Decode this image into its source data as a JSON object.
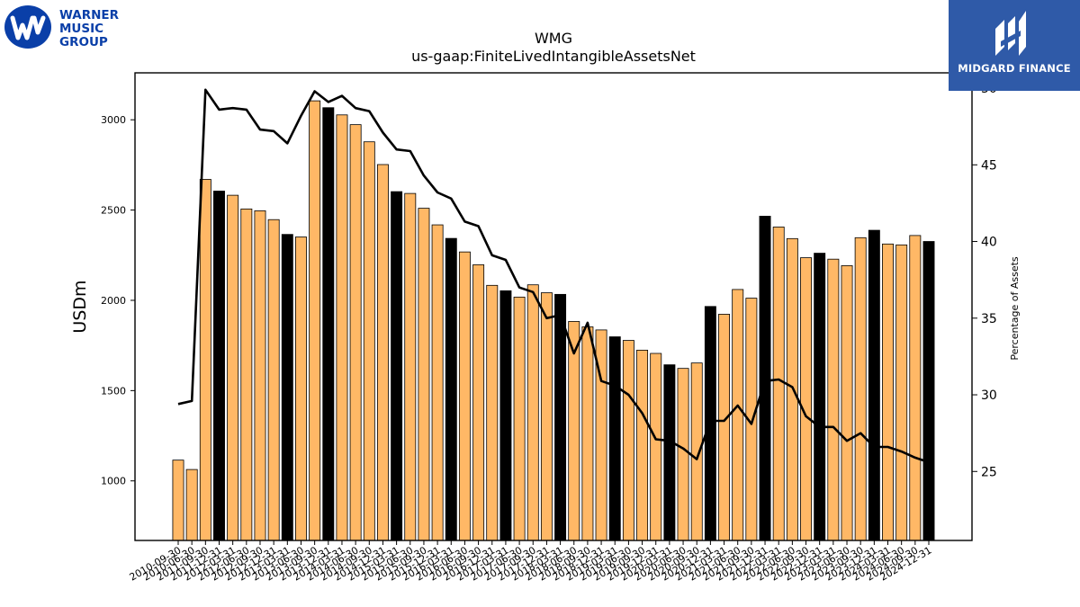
{
  "logos": {
    "wmg_lines": [
      "WARNER",
      "MUSIC",
      "GROUP"
    ],
    "midgard_text": "MIDGARD FINANCE"
  },
  "chart_data": {
    "type": "bar",
    "title": "WMG",
    "subtitle": "us-gaap:FiniteLivedIntangibleAssetsNet",
    "ylabel": "USDm",
    "y2label": "Percentage of Assets",
    "ylim": [
      670,
      3260
    ],
    "y2lim": [
      20.5,
      51.0
    ],
    "yticks": [
      1000,
      1500,
      2000,
      2500,
      3000
    ],
    "y2ticks": [
      25,
      30,
      35,
      40,
      45,
      50
    ],
    "colors": {
      "bar": "#ffb866",
      "bar_q4": "#000000",
      "line": "#000000"
    },
    "categories": [
      "2010-09-30",
      "2010-06-30",
      "2011-09-30",
      "2011-12-31",
      "2012-03-31",
      "2012-06-30",
      "2012-09-30",
      "2012-12-31",
      "2013-03-31",
      "2013-06-30",
      "2013-09-30",
      "2013-12-31",
      "2014-03-31",
      "2014-06-30",
      "2014-09-30",
      "2014-12-31",
      "2015-03-31",
      "2015-06-30",
      "2015-09-30",
      "2015-12-31",
      "2016-03-31",
      "2016-06-30",
      "2016-09-30",
      "2016-12-31",
      "2017-03-31",
      "2017-06-30",
      "2017-09-30",
      "2017-12-31",
      "2018-03-31",
      "2018-06-30",
      "2018-09-30",
      "2018-12-31",
      "2019-03-31",
      "2019-06-30",
      "2019-09-30",
      "2019-12-31",
      "2020-03-31",
      "2020-06-30",
      "2020-09-30",
      "2020-12-31",
      "2021-03-31",
      "2021-06-30",
      "2021-09-30",
      "2021-12-31",
      "2022-03-31",
      "2022-06-30",
      "2022-09-30",
      "2022-12-31",
      "2023-03-31",
      "2023-06-30",
      "2023-09-30",
      "2023-12-31",
      "2024-03-31",
      "2024-06-30",
      "2024-09-30",
      "2024-12-31"
    ],
    "series": [
      {
        "values": [
          1115,
          1063,
          2670,
          2605,
          2582,
          2506,
          2496,
          2447,
          2365,
          2351,
          3105,
          3067,
          3027,
          2973,
          2878,
          2752,
          2602,
          2592,
          2510,
          2418,
          2343,
          2268,
          2197,
          2083,
          2053,
          2018,
          2086,
          2042,
          2033,
          1883,
          1853,
          1836,
          1798,
          1778,
          1724,
          1706,
          1643,
          1623,
          1653,
          1966,
          1923,
          2060,
          2012,
          2466,
          2406,
          2342,
          2236,
          2261,
          2228,
          2192,
          2347,
          2388,
          2312,
          2307,
          2359,
          2326
        ]
      },
      {
        "values": [
          29.4,
          29.6,
          49.9,
          48.6,
          48.7,
          48.6,
          47.3,
          47.2,
          46.4,
          48.2,
          49.8,
          49.1,
          49.5,
          48.7,
          48.5,
          47.1,
          46.0,
          45.9,
          44.3,
          43.2,
          42.8,
          41.3,
          41.0,
          39.1,
          38.8,
          37.0,
          36.7,
          35.0,
          35.2,
          32.7,
          34.7,
          30.9,
          30.6,
          30.0,
          28.8,
          27.1,
          27.0,
          26.5,
          25.8,
          28.3,
          28.3,
          29.3,
          28.1,
          30.9,
          31.0,
          30.5,
          28.6,
          27.9,
          27.9,
          27.0,
          27.5,
          26.6,
          26.6,
          26.3,
          25.9,
          25.6
        ]
      }
    ],
    "q4_bars": [
      3,
      8,
      11,
      16,
      20,
      24,
      28,
      32,
      36,
      39,
      43,
      47,
      51,
      55
    ]
  }
}
